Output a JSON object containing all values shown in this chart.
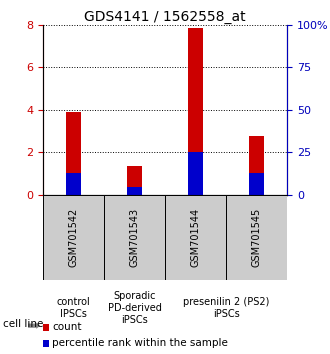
{
  "title": "GDS4141 / 1562558_at",
  "samples": [
    "GSM701542",
    "GSM701543",
    "GSM701544",
    "GSM701545"
  ],
  "red_values": [
    3.9,
    1.35,
    7.85,
    2.75
  ],
  "blue_values": [
    1.0,
    0.35,
    2.0,
    1.0
  ],
  "ylim": [
    0,
    8
  ],
  "y2lim": [
    0,
    100
  ],
  "yticks": [
    0,
    2,
    4,
    6,
    8
  ],
  "y2ticks": [
    0,
    25,
    50,
    75,
    100
  ],
  "y2labels": [
    "0",
    "25",
    "50",
    "75",
    "100%"
  ],
  "groups": [
    {
      "label": "control\nIPSCs",
      "color": "#cccccc",
      "span": [
        0,
        1
      ]
    },
    {
      "label": "Sporadic\nPD-derived\niPSCs",
      "color": "#cccccc",
      "span": [
        1,
        2
      ]
    },
    {
      "label": "presenilin 2 (PS2)\niPSCs",
      "color": "#44ee44",
      "span": [
        2,
        4
      ]
    }
  ],
  "bar_width": 0.25,
  "red_color": "#cc0000",
  "blue_color": "#0000cc",
  "tick_color_left": "#cc0000",
  "tick_color_right": "#0000bb",
  "cell_line_label": "cell line",
  "legend_red": "count",
  "legend_blue": "percentile rank within the sample",
  "sample_bg_color": "#cccccc",
  "sample_label_fontsize": 7,
  "group_label_fontsize": 7,
  "title_fontsize": 10,
  "legend_fontsize": 7.5
}
